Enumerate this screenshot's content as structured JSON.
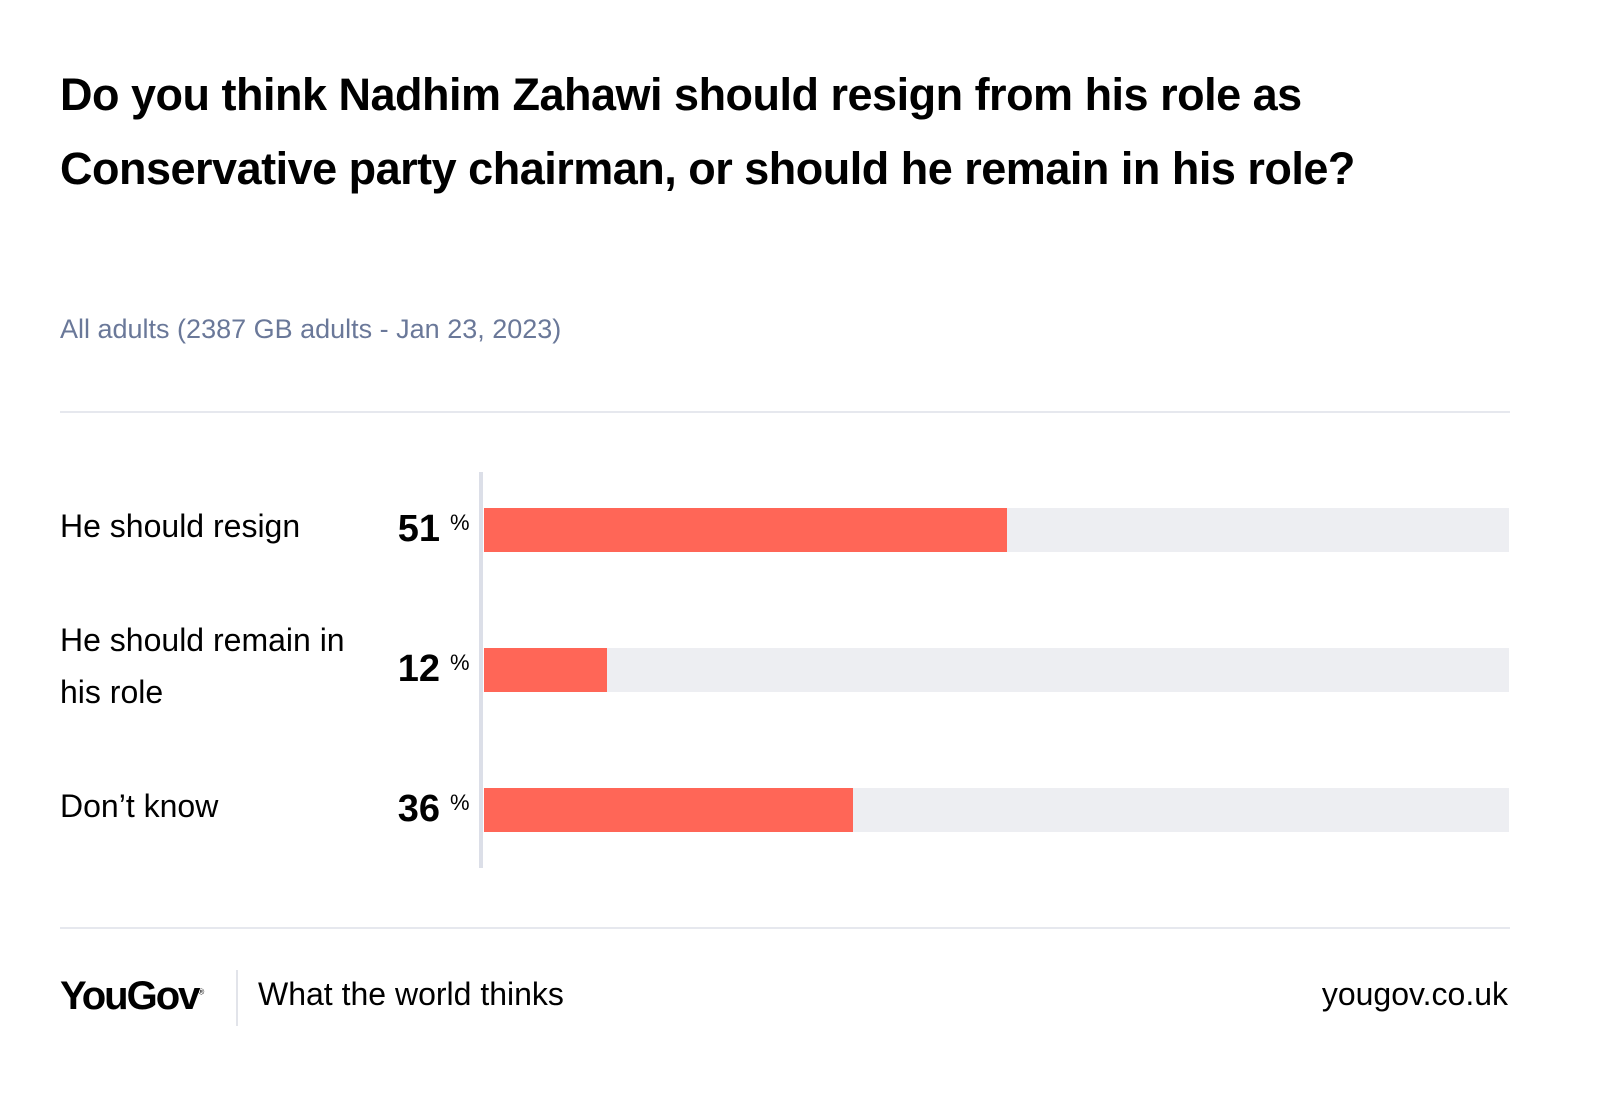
{
  "chart_data": {
    "type": "bar",
    "orientation": "horizontal",
    "title": "Do you think Nadhim Zahawi should resign from his role as Conservative party chairman, or should he remain in his role?",
    "subtitle": "All adults (2387 GB adults - Jan 23, 2023)",
    "categories": [
      "He should resign",
      "He should remain in his role",
      "Don’t know"
    ],
    "values": [
      51,
      12,
      36
    ],
    "unit": "%",
    "xlim": [
      0,
      100
    ],
    "grid": false,
    "bar_color": "#ff6657",
    "track_color": "#edeef2"
  },
  "footer": {
    "logo": "YouGov",
    "tagline": "What the world thinks",
    "site": "yougov.co.uk"
  }
}
